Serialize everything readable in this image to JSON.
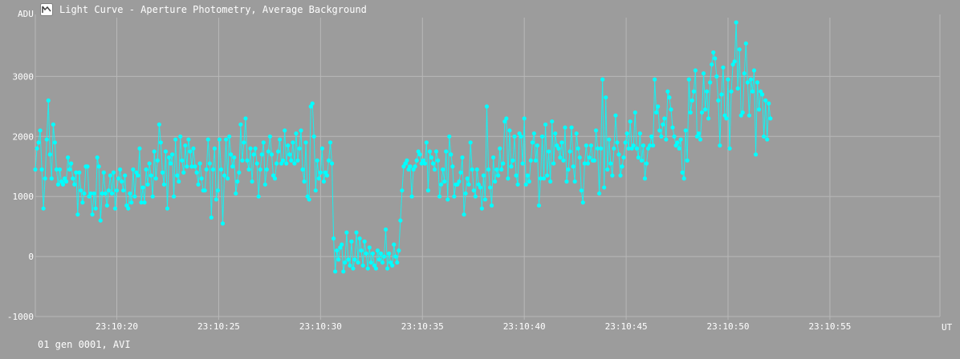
{
  "window": {
    "title": "Light Curve - Aperture Photometry, Average Background",
    "icon": "light-curve-app-icon"
  },
  "footer": {
    "text": "01 gen 0001, AVI"
  },
  "colors": {
    "background": "#9c9c9c",
    "grid": "#b8b8b8",
    "series": "#00ffff",
    "text": "#ffffff"
  },
  "chart_data": {
    "type": "line",
    "title": "",
    "xlabel": "UT",
    "ylabel": "ADU",
    "ylim": [
      -1000,
      3980
    ],
    "yticks": [
      -1000,
      0,
      1000,
      2000,
      3000
    ],
    "yticklabels": [
      "-1000",
      "0",
      "1000",
      "2000",
      "3000"
    ],
    "x_seconds_at_left_edge": 16.0,
    "x_seconds_at_right_edge": 60.4,
    "xticks_seconds": [
      20,
      25,
      30,
      35,
      40,
      45,
      50,
      55
    ],
    "xticklabels": [
      "23:10:20",
      "23:10:25",
      "23:10:30",
      "23:10:35",
      "23:10:40",
      "23:10:45",
      "23:10:50",
      "23:10:55"
    ],
    "grid": true,
    "legend": "none",
    "series": [
      {
        "x_start_seconds": 16.0,
        "x_step_seconds": 0.08,
        "values": [
          1450,
          1800,
          1900,
          2100,
          1450,
          800,
          1300,
          1950,
          2600,
          1700,
          1300,
          2200,
          1900,
          1450,
          1200,
          1450,
          1250,
          1200,
          1300,
          1250,
          1650,
          1450,
          1550,
          1300,
          1200,
          1400,
          700,
          1400,
          1100,
          900,
          1050,
          1500,
          1500,
          1000,
          1050,
          700,
          1050,
          800,
          1650,
          1500,
          600,
          1050,
          1400,
          1050,
          850,
          1100,
          1350,
          1050,
          1400,
          800,
          1100,
          1300,
          1450,
          1250,
          1100,
          1350,
          850,
          800,
          1050,
          900,
          1450,
          1000,
          1400,
          1350,
          1800,
          900,
          1150,
          900,
          1450,
          1200,
          1550,
          1350,
          1000,
          1750,
          1300,
          1600,
          2200,
          1900,
          1400,
          1200,
          1750,
          800,
          1650,
          1550,
          1700,
          1000,
          1950,
          1350,
          1250,
          2000,
          1600,
          1400,
          1850,
          1500,
          1950,
          1750,
          1500,
          1800,
          1500,
          1400,
          1200,
          1550,
          1300,
          1100,
          1100,
          1450,
          1950,
          1550,
          650,
          1450,
          1800,
          950,
          1100,
          1950,
          1450,
          550,
          1350,
          1950,
          1300,
          2000,
          1700,
          1500,
          1650,
          1050,
          1250,
          1400,
          2200,
          1600,
          1900,
          2300,
          1600,
          1450,
          1800,
          1250,
          1700,
          1800,
          1550,
          1000,
          1450,
          1700,
          1900,
          1200,
          1450,
          1750,
          2000,
          1700,
          1350,
          1300,
          1550,
          1750,
          1950,
          1550,
          1600,
          2100,
          1550,
          1850,
          1700,
          1600,
          1900,
          1550,
          2050,
          1600,
          1800,
          2100,
          1450,
          1250,
          1900,
          1000,
          950,
          2500,
          2550,
          2000,
          1100,
          1600,
          1300,
          1400,
          1800,
          1250,
          1400,
          1350,
          1600,
          1900,
          1550,
          300,
          -250,
          100,
          -50,
          150,
          200,
          -250,
          -100,
          400,
          -50,
          -150,
          250,
          -200,
          -50,
          400,
          -100,
          300,
          100,
          -150,
          250,
          50,
          -200,
          150,
          -100,
          50,
          -150,
          -200,
          100,
          -50,
          50,
          -100,
          0,
          450,
          -200,
          50,
          -100,
          -150,
          200,
          0,
          -100,
          100,
          600,
          1100,
          1500,
          1550,
          1600,
          1450,
          1500,
          1000,
          1450,
          1500,
          1600,
          1750,
          1700,
          1550,
          1600,
          1550,
          1900,
          1100,
          1750,
          1650,
          1550,
          1450,
          1750,
          1600,
          1000,
          1200,
          1450,
          1250,
          1750,
          950,
          2000,
          1700,
          1500,
          1000,
          1200,
          1200,
          1250,
          1400,
          1650,
          700,
          1050,
          1300,
          1200,
          1900,
          1450,
          1100,
          1000,
          1450,
          1200,
          1150,
          800,
          1350,
          950,
          2500,
          1450,
          1150,
          850,
          1650,
          1250,
          1450,
          1350,
          1800,
          1450,
          1550,
          2250,
          2300,
          1300,
          2100,
          1500,
          1600,
          2000,
          1350,
          1200,
          2050,
          2000,
          1550,
          2300,
          1200,
          1350,
          1250,
          1600,
          1900,
          2050,
          1600,
          1850,
          850,
          1300,
          2000,
          1300,
          2200,
          1350,
          1750,
          1250,
          2250,
          1550,
          2050,
          1850,
          1800,
          1650,
          1900,
          1600,
          2150,
          1250,
          1450,
          1750,
          2150,
          1500,
          1250,
          2050,
          1800,
          1650,
          1100,
          900,
          1550,
          1850,
          1550,
          1650,
          1850,
          1600,
          1600,
          2100,
          1800,
          1050,
          1800,
          2950,
          1150,
          2650,
          1450,
          1950,
          1550,
          1350,
          1800,
          2350,
          1900,
          1700,
          1350,
          1500,
          1650,
          1900,
          2050,
          1800,
          2250,
          1800,
          1850,
          2400,
          1800,
          1650,
          2050,
          1600,
          1850,
          1300,
          1550,
          1800,
          1850,
          2000,
          1850,
          2950,
          2400,
          2500,
          2100,
          2000,
          2200,
          2300,
          1950,
          2750,
          2650,
          2450,
          2150,
          2000,
          1850,
          1900,
          1800,
          1950,
          1400,
          1300,
          2100,
          1600,
          2950,
          2400,
          2600,
          2750,
          3100,
          2000,
          2050,
          1950,
          2400,
          3050,
          2450,
          2750,
          2300,
          2900,
          3200,
          3400,
          3300,
          3000,
          2600,
          1850,
          2700,
          3150,
          2350,
          2300,
          2950,
          1800,
          2750,
          3200,
          3250,
          3900,
          2800,
          3450,
          2350,
          2400,
          3050,
          3550,
          2900,
          2350,
          2950,
          2750,
          3100,
          1700,
          2900,
          2450,
          2750,
          2700,
          2000,
          2600,
          1950,
          2550,
          2300
        ]
      }
    ]
  }
}
